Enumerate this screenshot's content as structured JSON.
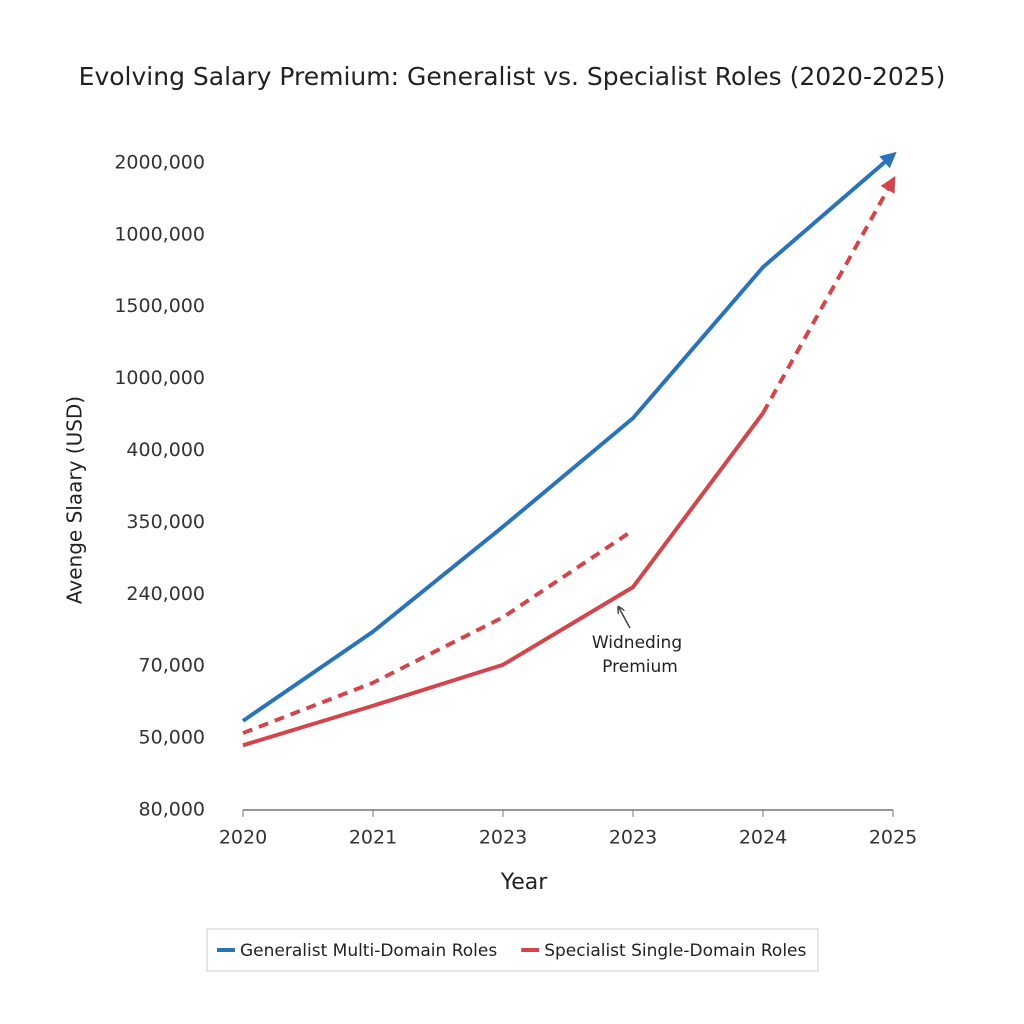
{
  "chart_data": {
    "type": "line",
    "title": "Evolving Salary Premium: Generalist vs. Specialist Roles (2020-2025)",
    "x_label": "Year",
    "y_label": "Avenge Slaary (USD)",
    "categories": [
      "2020",
      "2021",
      "2023",
      "2023",
      "2024",
      "2025"
    ],
    "ylim": [
      0,
      9.3
    ],
    "yticks": [
      {
        "value": 0,
        "label": "80,000"
      },
      {
        "value": 1,
        "label": "50,000"
      },
      {
        "value": 2,
        "label": "70,000"
      },
      {
        "value": 3,
        "label": "240,000"
      },
      {
        "value": 4,
        "label": "350,000"
      },
      {
        "value": 5,
        "label": "400,000"
      },
      {
        "value": 6,
        "label": "1000,000"
      },
      {
        "value": 7,
        "label": "1500,000"
      },
      {
        "value": 8,
        "label": "1000,000"
      },
      {
        "value": 9,
        "label": "2000,000"
      }
    ],
    "series": [
      {
        "name": "Generalist Multi-Domain Roles",
        "color": "#2a73b8",
        "values": [
          1.24,
          2.48,
          3.94,
          5.45,
          7.55,
          9.11
        ],
        "arrow": true
      },
      {
        "name": "Specialist Single-Domain Roles",
        "color": "#d2464b",
        "values": [
          0.9,
          1.45,
          2.02,
          3.1,
          5.52,
          null
        ]
      },
      {
        "color": "#d2464b",
        "values": [
          1.07,
          1.77,
          2.68,
          3.89,
          null,
          null
        ],
        "dashed": true
      },
      {
        "color": "#d2464b",
        "values": [
          null,
          null,
          null,
          null,
          5.52,
          8.76
        ],
        "dashed": true,
        "arrow": true
      }
    ],
    "annotation": [
      "Widneding",
      "Premium"
    ],
    "grid": false
  }
}
